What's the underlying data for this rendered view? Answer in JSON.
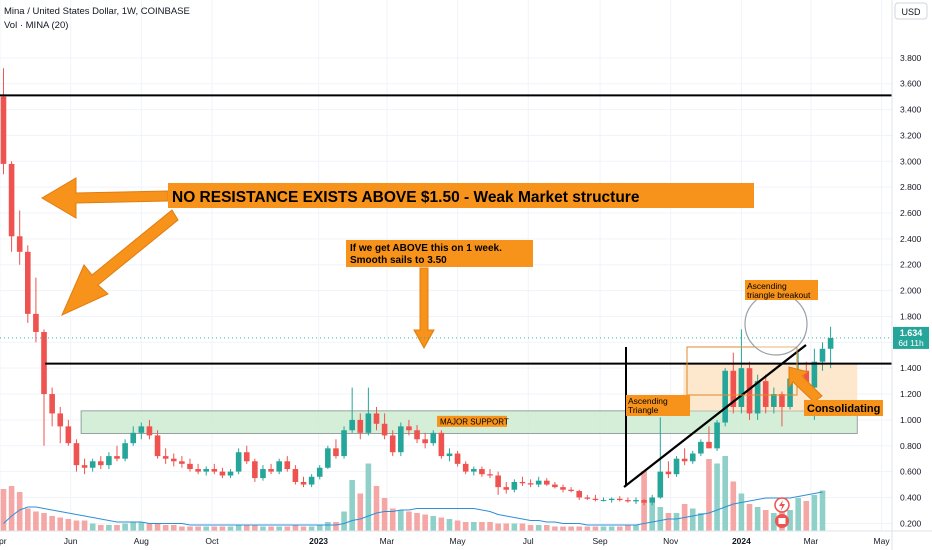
{
  "header": {
    "symbol_line": "Mina / United States Dollar, 1W, COINBASE",
    "volume_line": "Vol · MINA (20)"
  },
  "price_axis": {
    "currency_badge": "USD",
    "last_price": "1.634",
    "countdown": "6d 11h"
  },
  "chart_data": {
    "type": "candlestick",
    "title": "",
    "yticks": [
      "3.800",
      "3.600",
      "3.400",
      "3.200",
      "3.000",
      "2.800",
      "2.600",
      "2.400",
      "2.200",
      "2.000",
      "1.800",
      "1.600",
      "1.400",
      "1.200",
      "1.000",
      "0.800",
      "0.600",
      "0.400",
      "0.200"
    ],
    "ylim": [
      0.05,
      3.95
    ],
    "xlabels": [
      "Apr",
      "Jun",
      "Aug",
      "Oct",
      "2023",
      "Mar",
      "May",
      "Jul",
      "Sep",
      "Nov",
      "2024",
      "Mar",
      "May"
    ],
    "x_range": [
      "2022-04-01",
      "2024-05-10"
    ],
    "colors": {
      "up": "#26a69a",
      "down": "#ef5350",
      "vol_up": "#8fd0c8",
      "vol_down": "#f4a7a5",
      "annotation": "#f7931a",
      "support_fill": "#cdebd0",
      "vol_ma": "#2e8fd6"
    },
    "candles": [
      {
        "x": "2022-04-04",
        "o": 3.5,
        "h": 3.72,
        "l": 2.9,
        "c": 2.98
      },
      {
        "x": "2022-04-11",
        "o": 2.98,
        "h": 3.0,
        "l": 2.3,
        "c": 2.42
      },
      {
        "x": "2022-04-18",
        "o": 2.42,
        "h": 2.62,
        "l": 2.2,
        "c": 2.3
      },
      {
        "x": "2022-04-25",
        "o": 2.3,
        "h": 2.35,
        "l": 1.75,
        "c": 1.82
      },
      {
        "x": "2022-05-02",
        "o": 1.82,
        "h": 2.1,
        "l": 1.6,
        "c": 1.68
      },
      {
        "x": "2022-05-09",
        "o": 1.68,
        "h": 1.7,
        "l": 0.8,
        "c": 1.2
      },
      {
        "x": "2022-05-16",
        "o": 1.2,
        "h": 1.25,
        "l": 0.95,
        "c": 1.05
      },
      {
        "x": "2022-05-23",
        "o": 1.05,
        "h": 1.1,
        "l": 0.82,
        "c": 0.95
      },
      {
        "x": "2022-05-30",
        "o": 0.95,
        "h": 1.0,
        "l": 0.8,
        "c": 0.82
      },
      {
        "x": "2022-06-06",
        "o": 0.82,
        "h": 0.85,
        "l": 0.6,
        "c": 0.65
      },
      {
        "x": "2022-06-13",
        "o": 0.65,
        "h": 0.7,
        "l": 0.58,
        "c": 0.63
      },
      {
        "x": "2022-06-20",
        "o": 0.63,
        "h": 0.7,
        "l": 0.6,
        "c": 0.68
      },
      {
        "x": "2022-06-27",
        "o": 0.68,
        "h": 0.72,
        "l": 0.62,
        "c": 0.65
      },
      {
        "x": "2022-07-04",
        "o": 0.65,
        "h": 0.75,
        "l": 0.62,
        "c": 0.72
      },
      {
        "x": "2022-07-11",
        "o": 0.72,
        "h": 0.8,
        "l": 0.68,
        "c": 0.7
      },
      {
        "x": "2022-07-18",
        "o": 0.7,
        "h": 0.85,
        "l": 0.68,
        "c": 0.82
      },
      {
        "x": "2022-07-25",
        "o": 0.82,
        "h": 0.95,
        "l": 0.8,
        "c": 0.9
      },
      {
        "x": "2022-08-01",
        "o": 0.9,
        "h": 0.98,
        "l": 0.85,
        "c": 0.95
      },
      {
        "x": "2022-08-08",
        "o": 0.95,
        "h": 1.0,
        "l": 0.85,
        "c": 0.88
      },
      {
        "x": "2022-08-15",
        "o": 0.88,
        "h": 0.92,
        "l": 0.7,
        "c": 0.72
      },
      {
        "x": "2022-08-22",
        "o": 0.72,
        "h": 0.78,
        "l": 0.66,
        "c": 0.7
      },
      {
        "x": "2022-08-29",
        "o": 0.7,
        "h": 0.74,
        "l": 0.64,
        "c": 0.68
      },
      {
        "x": "2022-09-05",
        "o": 0.68,
        "h": 0.72,
        "l": 0.63,
        "c": 0.66
      },
      {
        "x": "2022-09-12",
        "o": 0.66,
        "h": 0.7,
        "l": 0.6,
        "c": 0.62
      },
      {
        "x": "2022-09-19",
        "o": 0.62,
        "h": 0.66,
        "l": 0.58,
        "c": 0.6
      },
      {
        "x": "2022-09-26",
        "o": 0.6,
        "h": 0.64,
        "l": 0.57,
        "c": 0.62
      },
      {
        "x": "2022-10-03",
        "o": 0.62,
        "h": 0.66,
        "l": 0.58,
        "c": 0.6
      },
      {
        "x": "2022-10-10",
        "o": 0.6,
        "h": 0.63,
        "l": 0.55,
        "c": 0.57
      },
      {
        "x": "2022-10-17",
        "o": 0.57,
        "h": 0.62,
        "l": 0.55,
        "c": 0.6
      },
      {
        "x": "2022-10-24",
        "o": 0.6,
        "h": 0.78,
        "l": 0.58,
        "c": 0.75
      },
      {
        "x": "2022-10-31",
        "o": 0.75,
        "h": 0.8,
        "l": 0.66,
        "c": 0.68
      },
      {
        "x": "2022-11-07",
        "o": 0.68,
        "h": 0.7,
        "l": 0.52,
        "c": 0.55
      },
      {
        "x": "2022-11-14",
        "o": 0.55,
        "h": 0.65,
        "l": 0.53,
        "c": 0.62
      },
      {
        "x": "2022-11-21",
        "o": 0.62,
        "h": 0.66,
        "l": 0.58,
        "c": 0.6
      },
      {
        "x": "2022-11-28",
        "o": 0.6,
        "h": 0.7,
        "l": 0.58,
        "c": 0.68
      },
      {
        "x": "2022-12-05",
        "o": 0.68,
        "h": 0.72,
        "l": 0.6,
        "c": 0.62
      },
      {
        "x": "2022-12-12",
        "o": 0.62,
        "h": 0.65,
        "l": 0.5,
        "c": 0.52
      },
      {
        "x": "2022-12-19",
        "o": 0.52,
        "h": 0.56,
        "l": 0.48,
        "c": 0.5
      },
      {
        "x": "2022-12-26",
        "o": 0.5,
        "h": 0.58,
        "l": 0.48,
        "c": 0.56
      },
      {
        "x": "2023-01-02",
        "o": 0.56,
        "h": 0.65,
        "l": 0.54,
        "c": 0.63
      },
      {
        "x": "2023-01-09",
        "o": 0.63,
        "h": 0.8,
        "l": 0.62,
        "c": 0.78
      },
      {
        "x": "2023-01-16",
        "o": 0.78,
        "h": 0.85,
        "l": 0.7,
        "c": 0.72
      },
      {
        "x": "2023-01-23",
        "o": 0.72,
        "h": 0.95,
        "l": 0.7,
        "c": 0.92
      },
      {
        "x": "2023-01-30",
        "o": 0.92,
        "h": 1.25,
        "l": 0.9,
        "c": 1.0
      },
      {
        "x": "2023-02-06",
        "o": 1.0,
        "h": 1.05,
        "l": 0.85,
        "c": 0.9
      },
      {
        "x": "2023-02-13",
        "o": 0.9,
        "h": 1.25,
        "l": 0.88,
        "c": 1.05
      },
      {
        "x": "2023-02-20",
        "o": 1.05,
        "h": 1.1,
        "l": 0.92,
        "c": 0.97
      },
      {
        "x": "2023-02-27",
        "o": 0.97,
        "h": 1.05,
        "l": 0.85,
        "c": 0.88
      },
      {
        "x": "2023-03-06",
        "o": 0.88,
        "h": 0.92,
        "l": 0.72,
        "c": 0.75
      },
      {
        "x": "2023-03-13",
        "o": 0.75,
        "h": 0.98,
        "l": 0.72,
        "c": 0.95
      },
      {
        "x": "2023-03-20",
        "o": 0.95,
        "h": 1.0,
        "l": 0.88,
        "c": 0.92
      },
      {
        "x": "2023-03-27",
        "o": 0.92,
        "h": 0.96,
        "l": 0.82,
        "c": 0.85
      },
      {
        "x": "2023-04-03",
        "o": 0.85,
        "h": 0.9,
        "l": 0.78,
        "c": 0.82
      },
      {
        "x": "2023-04-10",
        "o": 0.82,
        "h": 0.92,
        "l": 0.8,
        "c": 0.9
      },
      {
        "x": "2023-04-17",
        "o": 0.9,
        "h": 0.92,
        "l": 0.7,
        "c": 0.72
      },
      {
        "x": "2023-04-24",
        "o": 0.72,
        "h": 0.78,
        "l": 0.68,
        "c": 0.74
      },
      {
        "x": "2023-05-01",
        "o": 0.74,
        "h": 0.76,
        "l": 0.64,
        "c": 0.66
      },
      {
        "x": "2023-05-08",
        "o": 0.66,
        "h": 0.68,
        "l": 0.58,
        "c": 0.6
      },
      {
        "x": "2023-05-15",
        "o": 0.6,
        "h": 0.64,
        "l": 0.57,
        "c": 0.62
      },
      {
        "x": "2023-05-22",
        "o": 0.62,
        "h": 0.64,
        "l": 0.56,
        "c": 0.58
      },
      {
        "x": "2023-05-29",
        "o": 0.58,
        "h": 0.62,
        "l": 0.55,
        "c": 0.57
      },
      {
        "x": "2023-06-05",
        "o": 0.57,
        "h": 0.6,
        "l": 0.42,
        "c": 0.48
      },
      {
        "x": "2023-06-12",
        "o": 0.48,
        "h": 0.52,
        "l": 0.43,
        "c": 0.46
      },
      {
        "x": "2023-06-19",
        "o": 0.46,
        "h": 0.54,
        "l": 0.44,
        "c": 0.52
      },
      {
        "x": "2023-06-26",
        "o": 0.52,
        "h": 0.56,
        "l": 0.49,
        "c": 0.51
      },
      {
        "x": "2023-07-03",
        "o": 0.51,
        "h": 0.54,
        "l": 0.48,
        "c": 0.5
      },
      {
        "x": "2023-07-10",
        "o": 0.5,
        "h": 0.56,
        "l": 0.48,
        "c": 0.53
      },
      {
        "x": "2023-07-17",
        "o": 0.53,
        "h": 0.55,
        "l": 0.49,
        "c": 0.5
      },
      {
        "x": "2023-07-24",
        "o": 0.5,
        "h": 0.52,
        "l": 0.47,
        "c": 0.48
      },
      {
        "x": "2023-07-31",
        "o": 0.48,
        "h": 0.5,
        "l": 0.44,
        "c": 0.46
      },
      {
        "x": "2023-08-07",
        "o": 0.46,
        "h": 0.48,
        "l": 0.44,
        "c": 0.45
      },
      {
        "x": "2023-08-14",
        "o": 0.45,
        "h": 0.46,
        "l": 0.38,
        "c": 0.4
      },
      {
        "x": "2023-08-21",
        "o": 0.4,
        "h": 0.42,
        "l": 0.38,
        "c": 0.39
      },
      {
        "x": "2023-08-28",
        "o": 0.39,
        "h": 0.42,
        "l": 0.37,
        "c": 0.38
      },
      {
        "x": "2023-09-04",
        "o": 0.38,
        "h": 0.4,
        "l": 0.37,
        "c": 0.38
      },
      {
        "x": "2023-09-11",
        "o": 0.38,
        "h": 0.4,
        "l": 0.36,
        "c": 0.39
      },
      {
        "x": "2023-09-18",
        "o": 0.39,
        "h": 0.41,
        "l": 0.37,
        "c": 0.38
      },
      {
        "x": "2023-09-25",
        "o": 0.38,
        "h": 0.4,
        "l": 0.36,
        "c": 0.37
      },
      {
        "x": "2023-10-02",
        "o": 0.37,
        "h": 0.4,
        "l": 0.35,
        "c": 0.38
      },
      {
        "x": "2023-10-09",
        "o": 0.38,
        "h": 0.39,
        "l": 0.34,
        "c": 0.36
      },
      {
        "x": "2023-10-16",
        "o": 0.36,
        "h": 0.42,
        "l": 0.34,
        "c": 0.4
      },
      {
        "x": "2023-10-23",
        "o": 0.4,
        "h": 1.02,
        "l": 0.39,
        "c": 0.6
      },
      {
        "x": "2023-10-30",
        "o": 0.6,
        "h": 0.68,
        "l": 0.55,
        "c": 0.58
      },
      {
        "x": "2023-11-06",
        "o": 0.58,
        "h": 0.72,
        "l": 0.56,
        "c": 0.7
      },
      {
        "x": "2023-11-13",
        "o": 0.7,
        "h": 0.78,
        "l": 0.65,
        "c": 0.68
      },
      {
        "x": "2023-11-20",
        "o": 0.68,
        "h": 0.76,
        "l": 0.66,
        "c": 0.74
      },
      {
        "x": "2023-11-27",
        "o": 0.74,
        "h": 0.85,
        "l": 0.72,
        "c": 0.83
      },
      {
        "x": "2023-12-04",
        "o": 0.83,
        "h": 0.95,
        "l": 0.8,
        "c": 0.78
      },
      {
        "x": "2023-12-11",
        "o": 0.78,
        "h": 1.0,
        "l": 0.76,
        "c": 0.98
      },
      {
        "x": "2023-12-18",
        "o": 0.98,
        "h": 1.4,
        "l": 0.95,
        "c": 1.38
      },
      {
        "x": "2023-12-25",
        "o": 1.38,
        "h": 1.52,
        "l": 1.05,
        "c": 1.1
      },
      {
        "x": "2024-01-01",
        "o": 1.1,
        "h": 1.7,
        "l": 1.05,
        "c": 1.4
      },
      {
        "x": "2024-01-08",
        "o": 1.4,
        "h": 1.45,
        "l": 1.0,
        "c": 1.05
      },
      {
        "x": "2024-01-15",
        "o": 1.05,
        "h": 1.35,
        "l": 1.0,
        "c": 1.3
      },
      {
        "x": "2024-01-22",
        "o": 1.3,
        "h": 1.35,
        "l": 1.05,
        "c": 1.1
      },
      {
        "x": "2024-01-29",
        "o": 1.1,
        "h": 1.25,
        "l": 1.05,
        "c": 1.2
      },
      {
        "x": "2024-02-05",
        "o": 1.2,
        "h": 1.22,
        "l": 0.95,
        "c": 1.1
      },
      {
        "x": "2024-02-12",
        "o": 1.1,
        "h": 1.35,
        "l": 1.08,
        "c": 1.32
      },
      {
        "x": "2024-02-19",
        "o": 1.32,
        "h": 1.52,
        "l": 1.25,
        "c": 1.38
      },
      {
        "x": "2024-02-26",
        "o": 1.38,
        "h": 1.45,
        "l": 1.2,
        "c": 1.25
      },
      {
        "x": "2024-03-04",
        "o": 1.25,
        "h": 1.55,
        "l": 1.0,
        "c": 1.45
      },
      {
        "x": "2024-03-11",
        "o": 1.45,
        "h": 1.6,
        "l": 1.38,
        "c": 1.55
      },
      {
        "x": "2024-03-18",
        "o": 1.55,
        "h": 1.72,
        "l": 1.4,
        "c": 1.634
      }
    ],
    "volume": [
      0.28,
      0.3,
      0.26,
      0.15,
      0.13,
      0.12,
      0.1,
      0.09,
      0.08,
      0.07,
      0.07,
      0.05,
      0.04,
      0.04,
      0.04,
      0.05,
      0.06,
      0.06,
      0.05,
      0.05,
      0.04,
      0.04,
      0.03,
      0.03,
      0.03,
      0.03,
      0.03,
      0.03,
      0.03,
      0.04,
      0.04,
      0.04,
      0.03,
      0.03,
      0.03,
      0.03,
      0.04,
      0.03,
      0.03,
      0.04,
      0.06,
      0.06,
      0.13,
      0.34,
      0.25,
      0.45,
      0.3,
      0.22,
      0.15,
      0.14,
      0.13,
      0.12,
      0.11,
      0.1,
      0.09,
      0.08,
      0.07,
      0.06,
      0.06,
      0.06,
      0.06,
      0.05,
      0.05,
      0.05,
      0.05,
      0.04,
      0.04,
      0.04,
      0.03,
      0.03,
      0.03,
      0.03,
      0.03,
      0.03,
      0.03,
      0.03,
      0.03,
      0.04,
      0.04,
      0.4,
      0.22,
      0.16,
      0.12,
      0.12,
      0.18,
      0.15,
      0.12,
      0.48,
      0.45,
      0.5,
      0.33,
      0.25,
      0.18,
      0.16,
      0.14,
      0.12,
      0.15,
      0.14,
      0.22,
      0.2,
      0.24,
      0.27
    ],
    "volume_ma": [
      0.05,
      0.1,
      0.14,
      0.16,
      0.16,
      0.15,
      0.14,
      0.13,
      0.12,
      0.11,
      0.1,
      0.09,
      0.08,
      0.07,
      0.06,
      0.06,
      0.06,
      0.06,
      0.05,
      0.05,
      0.05,
      0.05,
      0.05,
      0.04,
      0.04,
      0.04,
      0.04,
      0.04,
      0.04,
      0.04,
      0.04,
      0.04,
      0.04,
      0.04,
      0.04,
      0.04,
      0.04,
      0.04,
      0.04,
      0.04,
      0.04,
      0.04,
      0.05,
      0.07,
      0.08,
      0.1,
      0.12,
      0.13,
      0.13,
      0.14,
      0.14,
      0.15,
      0.15,
      0.15,
      0.15,
      0.15,
      0.15,
      0.15,
      0.15,
      0.14,
      0.13,
      0.11,
      0.1,
      0.09,
      0.08,
      0.07,
      0.07,
      0.06,
      0.06,
      0.05,
      0.05,
      0.05,
      0.04,
      0.04,
      0.04,
      0.04,
      0.04,
      0.04,
      0.04,
      0.05,
      0.06,
      0.07,
      0.08,
      0.08,
      0.09,
      0.1,
      0.11,
      0.12,
      0.14,
      0.16,
      0.18,
      0.19,
      0.2,
      0.21,
      0.22,
      0.22,
      0.22,
      0.22,
      0.23,
      0.24,
      0.25,
      0.26
    ],
    "horizontal_lines": [
      {
        "y": 3.51,
        "x_from": "2022-04-01",
        "x_to": "2024-05-10",
        "color": "#000000"
      },
      {
        "y": 1.435,
        "x_from": "2022-05-10",
        "x_to": "2024-05-10",
        "color": "#000000"
      }
    ],
    "zones": [
      {
        "label": "MAJOR SUPPORT",
        "x_from": "2022-06-10",
        "x_to": "2024-04-10",
        "y_top": 1.07,
        "y_bottom": 0.895
      },
      {
        "label": "",
        "x_from": "2023-11-12",
        "x_to": "2024-04-10",
        "y_top": 1.435,
        "y_bottom": 1.07
      }
    ],
    "annotations": [
      {
        "text": "NO RESISTANCE EXISTS ABOVE $1.50 - Weak Market structure",
        "style": "banner"
      },
      {
        "text_lines": [
          "If we get ABOVE this on 1 week.",
          "Smooth sails to  3.50"
        ],
        "style": "box"
      },
      {
        "text_lines": [
          "Ascending",
          "Triangle"
        ],
        "style": "box"
      },
      {
        "text_lines": [
          "Ascending",
          "triangle breakout"
        ],
        "style": "box"
      },
      {
        "text": "Consolidating",
        "style": "box"
      }
    ]
  }
}
